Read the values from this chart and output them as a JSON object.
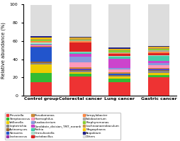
{
  "groups": [
    "Control group",
    "Colorectal cancer",
    "Lung cancer",
    "Gastric cancer"
  ],
  "taxa": [
    "Prevotella",
    "Streptococcus",
    "Veillonella",
    "Leptotrichia",
    "Actinomyces",
    "Neisseria",
    "Lactococcus",
    "Pseudomonas",
    "Haemophilus",
    "Fusobacterium",
    "Candidate_division_TM7_norank",
    "Rothia",
    "Granulicatella",
    "Lactobacillus",
    "Campylobacter",
    "Solobacterium",
    "Porphyromonas",
    "Lachnoanaerobaculum",
    "Megasphaera",
    "Atopobium",
    "Others"
  ],
  "colors": {
    "Prevotella": "#ee3333",
    "Streptococcus": "#33bb33",
    "Veillonella": "#eecc00",
    "Leptotrichia": "#888888",
    "Actinomyces": "#996633",
    "Neisseria": "#2255cc",
    "Lactococcus": "#9933aa",
    "Pseudomonas": "#cc8833",
    "Haemophilus": "#ff99bb",
    "Fusobacterium": "#8899dd",
    "Candidate_division_TM7_norank": "#cc44cc",
    "Rothia": "#44ccaa",
    "Granulicatella": "#aaddcc",
    "Lactobacillus": "#dd2222",
    "Campylobacter": "#ff8844",
    "Solobacterium": "#aaaaaa",
    "Porphyromonas": "#88cc33",
    "Lachnoanaerobaculum": "#cc9944",
    "Megasphaera": "#ffcc00",
    "Atopobium": "#222288",
    "Others": "#dddddd"
  },
  "stacks": {
    "Control group": [
      15,
      10,
      9,
      1.5,
      2,
      15,
      1,
      0.5,
      1,
      0.5,
      0.5,
      1,
      1,
      0.5,
      1,
      0.5,
      1,
      1,
      2,
      1,
      34.5
    ],
    "Colorectal cancer": [
      21,
      3,
      2,
      1,
      1,
      1,
      0.5,
      2,
      5,
      6,
      3,
      2,
      1,
      10,
      1,
      1,
      1,
      1,
      1,
      1,
      36.5
    ],
    "Lung cancer": [
      15,
      4,
      2,
      1,
      1,
      1,
      0.5,
      1,
      3,
      2,
      10,
      2,
      1,
      2,
      1,
      1,
      2,
      1,
      1,
      1,
      47.5
    ],
    "Gastric cancer": [
      20,
      3,
      2,
      2,
      1,
      1,
      0.5,
      1,
      3,
      2,
      3,
      5,
      1,
      2,
      2,
      1,
      2,
      1,
      1,
      1,
      45.5
    ]
  },
  "ylabel": "Relative abundance (%)",
  "yticks": [
    0,
    20,
    40,
    60,
    80,
    100
  ]
}
